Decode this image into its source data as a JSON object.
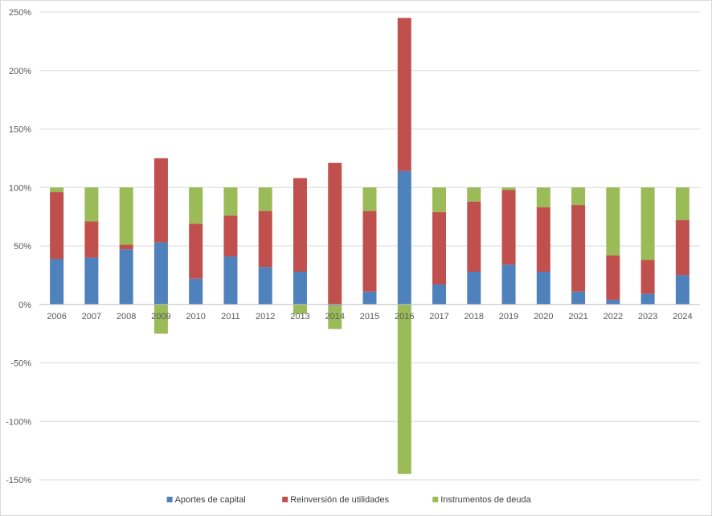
{
  "chart_data": {
    "type": "bar",
    "stacked": true,
    "categories": [
      "2006",
      "2007",
      "2008",
      "2009",
      "2010",
      "2011",
      "2012",
      "2013",
      "2014",
      "2015",
      "2016",
      "2017",
      "2018",
      "2019",
      "2020",
      "2021",
      "2022",
      "2023",
      "2024"
    ],
    "series": [
      {
        "name": "Aportes de capital",
        "color": "#4f81bd",
        "values": [
          39,
          40,
          47,
          53,
          22,
          41,
          32,
          28,
          -1,
          11,
          114,
          17,
          28,
          34,
          28,
          11,
          4,
          9,
          25
        ]
      },
      {
        "name": "Reinversión de utilidades",
        "color": "#c0504d",
        "values": [
          57,
          31,
          4,
          72,
          47,
          35,
          48,
          80,
          121,
          69,
          131,
          62,
          60,
          64,
          55,
          74,
          38,
          29,
          47
        ]
      },
      {
        "name": "Instrumentos de deuda",
        "color": "#9bbb59",
        "values": [
          4,
          29,
          49,
          -25,
          31,
          24,
          20,
          -8,
          -20,
          20,
          -145,
          21,
          12,
          2,
          17,
          15,
          58,
          62,
          28
        ]
      }
    ],
    "y_ticks": [
      "-150%",
      "-100%",
      "-50%",
      "0%",
      "50%",
      "100%",
      "150%",
      "200%",
      "250%"
    ],
    "ylim": [
      -150,
      250
    ],
    "y_unit": "%",
    "grid": true,
    "legend_position": "bottom"
  }
}
